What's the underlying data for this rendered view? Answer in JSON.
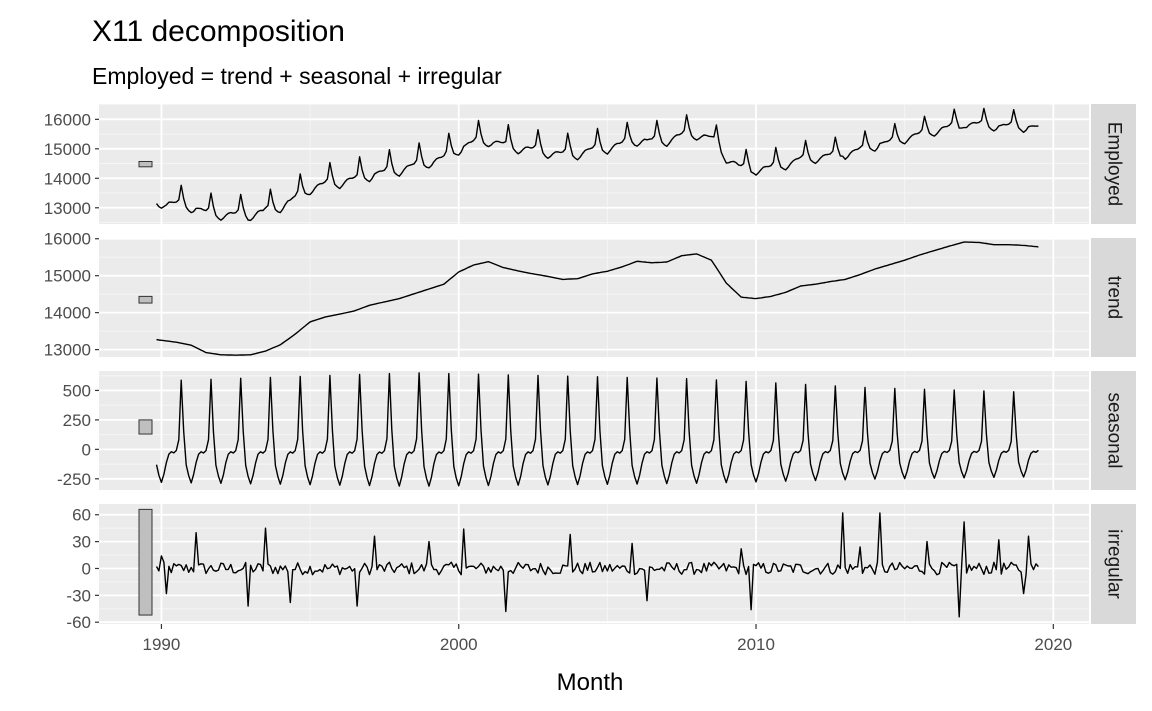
{
  "chart_data": {
    "type": "line",
    "title": "X11 decomposition",
    "subtitle": "Employed = trend + seasonal + irregular",
    "xlabel": "Month",
    "xlim": [
      1987.9,
      2021.2
    ],
    "xticks": [
      1990,
      2000,
      2010,
      2020
    ],
    "x_start": 1989.833,
    "x_step": 0.0833333,
    "n_points": 357,
    "grid": true,
    "panels": [
      {
        "name": "Employed",
        "ylim": [
          12450,
          16520
        ],
        "yticks": [
          13000,
          14000,
          15000,
          16000
        ],
        "scale_bar": {
          "low": 14390,
          "high": 14570
        },
        "description": "trend + seasonal + irregular (computed from the components below)"
      },
      {
        "name": "trend",
        "ylim": [
          12800,
          16020
        ],
        "yticks": [
          13000,
          14000,
          15000,
          16000
        ],
        "scale_bar": {
          "low": 14260,
          "high": 14440
        },
        "anchors": [
          [
            1989.833,
            13270
          ],
          [
            1990.5,
            13200
          ],
          [
            1991.0,
            13120
          ],
          [
            1991.5,
            12920
          ],
          [
            1992.0,
            12860
          ],
          [
            1992.5,
            12850
          ],
          [
            1993.0,
            12860
          ],
          [
            1993.5,
            12960
          ],
          [
            1994.0,
            13130
          ],
          [
            1994.5,
            13420
          ],
          [
            1995.0,
            13750
          ],
          [
            1995.5,
            13880
          ],
          [
            1996.0,
            13960
          ],
          [
            1996.5,
            14050
          ],
          [
            1997.0,
            14200
          ],
          [
            1997.5,
            14290
          ],
          [
            1998.0,
            14380
          ],
          [
            1998.5,
            14510
          ],
          [
            1999.0,
            14640
          ],
          [
            1999.5,
            14770
          ],
          [
            2000.0,
            15100
          ],
          [
            2000.5,
            15290
          ],
          [
            2001.0,
            15380
          ],
          [
            2001.5,
            15220
          ],
          [
            2002.0,
            15130
          ],
          [
            2002.5,
            15050
          ],
          [
            2003.0,
            14980
          ],
          [
            2003.5,
            14900
          ],
          [
            2004.0,
            14920
          ],
          [
            2004.5,
            15050
          ],
          [
            2005.0,
            15120
          ],
          [
            2005.5,
            15240
          ],
          [
            2006.0,
            15390
          ],
          [
            2006.5,
            15350
          ],
          [
            2007.0,
            15370
          ],
          [
            2007.5,
            15540
          ],
          [
            2008.0,
            15590
          ],
          [
            2008.5,
            15420
          ],
          [
            2009.0,
            14800
          ],
          [
            2009.5,
            14420
          ],
          [
            2010.0,
            14380
          ],
          [
            2010.5,
            14440
          ],
          [
            2011.0,
            14550
          ],
          [
            2011.5,
            14720
          ],
          [
            2012.0,
            14770
          ],
          [
            2012.5,
            14840
          ],
          [
            2013.0,
            14900
          ],
          [
            2013.5,
            15030
          ],
          [
            2014.0,
            15180
          ],
          [
            2014.5,
            15300
          ],
          [
            2015.0,
            15420
          ],
          [
            2015.5,
            15560
          ],
          [
            2016.0,
            15680
          ],
          [
            2016.5,
            15800
          ],
          [
            2017.0,
            15910
          ],
          [
            2017.5,
            15900
          ],
          [
            2018.0,
            15840
          ],
          [
            2018.5,
            15840
          ],
          [
            2019.0,
            15820
          ],
          [
            2019.5,
            15780
          ],
          [
            2019.667,
            15760
          ]
        ]
      },
      {
        "name": "seasonal",
        "ylim": [
          -345,
          665
        ],
        "yticks": [
          -250,
          0,
          250,
          500
        ],
        "yticklabels": [
          "-250",
          "0",
          "250",
          "500"
        ],
        "scale_bar": {
          "low": 130,
          "high": 250
        },
        "monthly_pattern": [
          -280,
          -210,
          -110,
          -40,
          -20,
          -30,
          -10,
          80,
          580,
          150,
          -130,
          -220
        ],
        "amplitude_profile": [
          [
            1989.833,
            1.0
          ],
          [
            1998.5,
            1.12
          ],
          [
            2008.0,
            1.03
          ],
          [
            2014.0,
            0.9
          ],
          [
            2019.667,
            0.83
          ]
        ]
      },
      {
        "name": "irregular",
        "ylim": [
          -62,
          72
        ],
        "yticks": [
          -60,
          -30,
          0,
          30,
          60
        ],
        "yticklabels": [
          "-60",
          "-30",
          "0",
          "30",
          "60"
        ],
        "scale_bar": {
          "low": -52,
          "high": 66
        },
        "spikes": [
          [
            1990.0,
            14
          ],
          [
            1990.167,
            -28
          ],
          [
            1991.167,
            40
          ],
          [
            1992.917,
            -42
          ],
          [
            1993.5,
            45
          ],
          [
            1994.333,
            -38
          ],
          [
            1996.583,
            -42
          ],
          [
            1997.167,
            36
          ],
          [
            1999.0,
            30
          ],
          [
            2000.167,
            44
          ],
          [
            2001.583,
            -48
          ],
          [
            2003.75,
            38
          ],
          [
            2005.833,
            28
          ],
          [
            2006.333,
            -36
          ],
          [
            2009.833,
            -46
          ],
          [
            2009.5,
            22
          ],
          [
            2012.917,
            62
          ],
          [
            2013.5,
            24
          ],
          [
            2014.167,
            62
          ],
          [
            2015.75,
            30
          ],
          [
            2016.833,
            -54
          ],
          [
            2017.0,
            52
          ],
          [
            2018.167,
            32
          ],
          [
            2019.0,
            -28
          ],
          [
            2019.167,
            36
          ]
        ]
      }
    ]
  }
}
